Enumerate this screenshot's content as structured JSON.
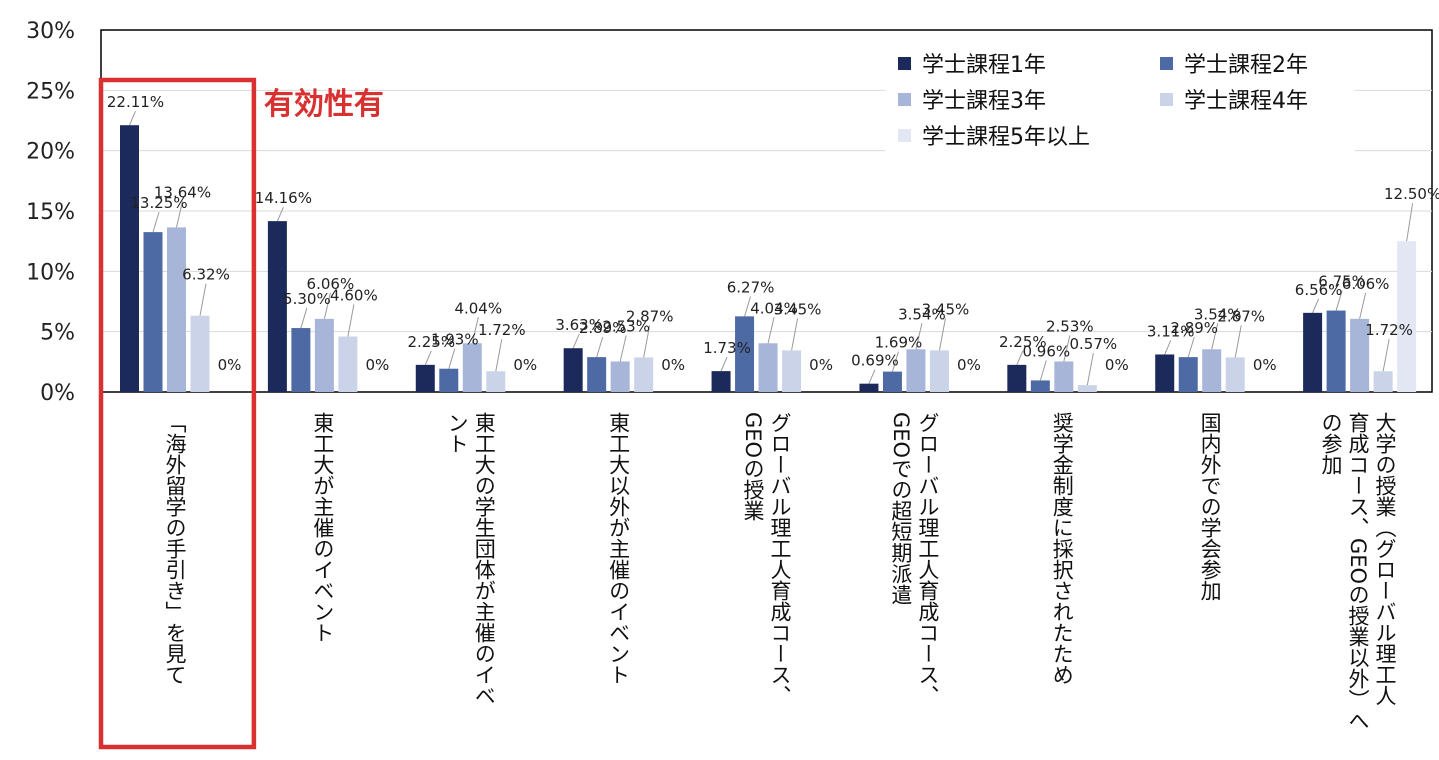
{
  "chart_data": {
    "type": "bar",
    "ylim": [
      0,
      30
    ],
    "yticks": [
      "0%",
      "5%",
      "10%",
      "15%",
      "20%",
      "25%",
      "30%"
    ],
    "grid": true,
    "legend_position": "top-right",
    "categories": [
      [
        "「海外留学の手引き」を見て"
      ],
      [
        "東工大が主催のイベント"
      ],
      [
        "東工大の学生団体が主催のイベ",
        "ント"
      ],
      [
        "東工大以外が主催のイベント"
      ],
      [
        "グローバル理工人育成コース、",
        "GEOの授業"
      ],
      [
        "グローバル理工人育成コース、",
        "GEOでの超短期派遣"
      ],
      [
        "奨学金制度に採択されたため"
      ],
      [
        "国内外での学会参加"
      ],
      [
        "大学の授業（グローバル理工人",
        "育成コース、GEOの授業以外）へ",
        "の参加"
      ]
    ],
    "series": [
      {
        "name": "学士課程1年",
        "color": "#1b2a5a",
        "values": [
          22.11,
          14.16,
          2.25,
          3.63,
          1.73,
          0.69,
          2.25,
          3.11,
          6.56
        ],
        "labels": [
          "22.11%",
          "14.16%",
          "2.25%",
          "3.63%",
          "1.73%",
          "0.69%",
          "2.25%",
          "3.11%",
          "6.56%"
        ]
      },
      {
        "name": "学士課程2年",
        "color": "#4e6aa4",
        "values": [
          13.25,
          5.3,
          1.93,
          2.89,
          6.27,
          1.69,
          0.96,
          2.89,
          6.75
        ],
        "labels": [
          "13.25%",
          "5.30%",
          "1.93%",
          "2.89%",
          "6.27%",
          "1.69%",
          "0.96%",
          "2.89%",
          "6.75%"
        ]
      },
      {
        "name": "学士課程3年",
        "color": "#a7b6d8",
        "values": [
          13.64,
          6.06,
          4.04,
          2.53,
          4.04,
          3.54,
          2.53,
          3.54,
          6.06
        ],
        "labels": [
          "13.64%",
          "6.06%",
          "4.04%",
          "2.53%",
          "4.04%",
          "3.54%",
          "2.53%",
          "3.54%",
          "6.06%"
        ]
      },
      {
        "name": "学士課程4年",
        "color": "#cad3e8",
        "values": [
          6.32,
          4.6,
          1.72,
          2.87,
          3.45,
          3.45,
          0.57,
          2.87,
          1.72
        ],
        "labels": [
          "6.32%",
          "4.60%",
          "1.72%",
          "2.87%",
          "3.45%",
          "3.45%",
          "0.57%",
          "2.87%",
          "1.72%"
        ]
      },
      {
        "name": "学士課程5年以上",
        "color": "#e2e7f3",
        "values": [
          0,
          0,
          0,
          0,
          0,
          0,
          0,
          0,
          12.5
        ],
        "labels": [
          "0%",
          "0%",
          "0%",
          "0%",
          "0%",
          "0%",
          "0%",
          "0%",
          "12.50%"
        ]
      }
    ],
    "annotation": {
      "text": "有効性有",
      "category_index": 0,
      "color": "#d93030"
    }
  }
}
